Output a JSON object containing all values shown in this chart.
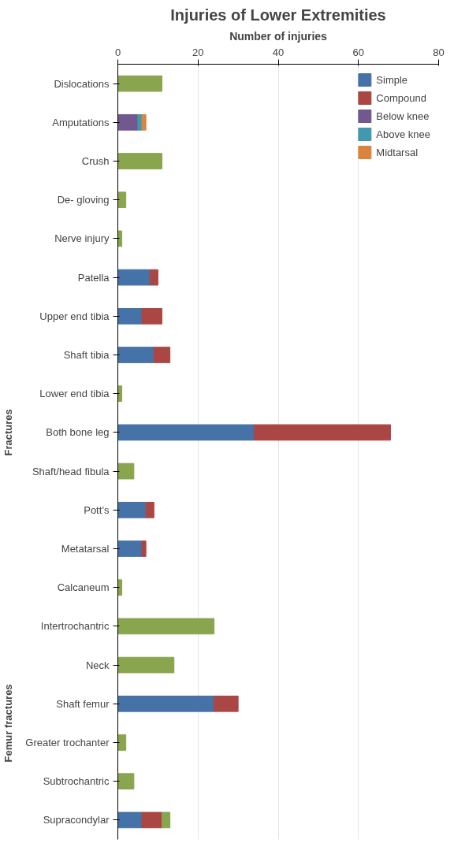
{
  "chart_data": {
    "type": "bar",
    "orientation": "horizontal",
    "stacked": true,
    "title": "Injuries of Lower Extremities",
    "xlabel": "Number of injuries",
    "categories": [
      "Dislocations",
      "Amputations",
      "Crush",
      "De- gloving",
      "Nerve injury",
      "Patella",
      "Upper end tibia",
      "Shaft tibia",
      "Lower end tibia",
      "Both bone leg",
      "Shaft/head fibula",
      "Pott’s",
      "Metatarsal",
      "Calcaneum",
      "Intertrochantric",
      "Neck",
      "Shaft femur",
      "Greater trochanter",
      "Subtrochantric",
      "Supracondylar"
    ],
    "series": [
      {
        "name": "Simple",
        "color": "#4572a7",
        "values": [
          null,
          null,
          null,
          null,
          null,
          8,
          6,
          9,
          null,
          34,
          null,
          7,
          6,
          null,
          null,
          null,
          24,
          null,
          null,
          6
        ]
      },
      {
        "name": "Compound",
        "color": "#aa4643",
        "values": [
          null,
          null,
          null,
          null,
          null,
          2,
          5,
          4,
          null,
          34,
          null,
          2,
          1,
          null,
          null,
          null,
          6,
          null,
          null,
          5
        ]
      },
      {
        "color": "#89a54e",
        "values": [
          11,
          null,
          11,
          2,
          1,
          null,
          null,
          null,
          1,
          null,
          4,
          null,
          null,
          1,
          24,
          14,
          null,
          2,
          4,
          2
        ]
      },
      {
        "name": "Below knee",
        "color": "#71588f",
        "values": [
          null,
          5,
          null,
          null,
          null,
          null,
          null,
          null,
          null,
          null,
          null,
          null,
          null,
          null,
          null,
          null,
          null,
          null,
          null,
          null
        ]
      },
      {
        "name": "Above knee",
        "color": "#4198af",
        "values": [
          null,
          1,
          null,
          null,
          null,
          null,
          null,
          null,
          null,
          null,
          null,
          null,
          null,
          null,
          null,
          null,
          null,
          null,
          null,
          null
        ]
      },
      {
        "name": "Midtarsal",
        "color": "#db843d",
        "values": [
          null,
          1,
          null,
          null,
          null,
          null,
          null,
          null,
          null,
          null,
          null,
          null,
          null,
          null,
          null,
          null,
          null,
          null,
          null,
          null
        ]
      }
    ],
    "xlim": [
      0,
      80
    ],
    "xticks": [
      0,
      20,
      40,
      60,
      80
    ],
    "grid": "x",
    "legend": "top right",
    "annotations": [
      "Fractures",
      "Femur fractures"
    ]
  }
}
